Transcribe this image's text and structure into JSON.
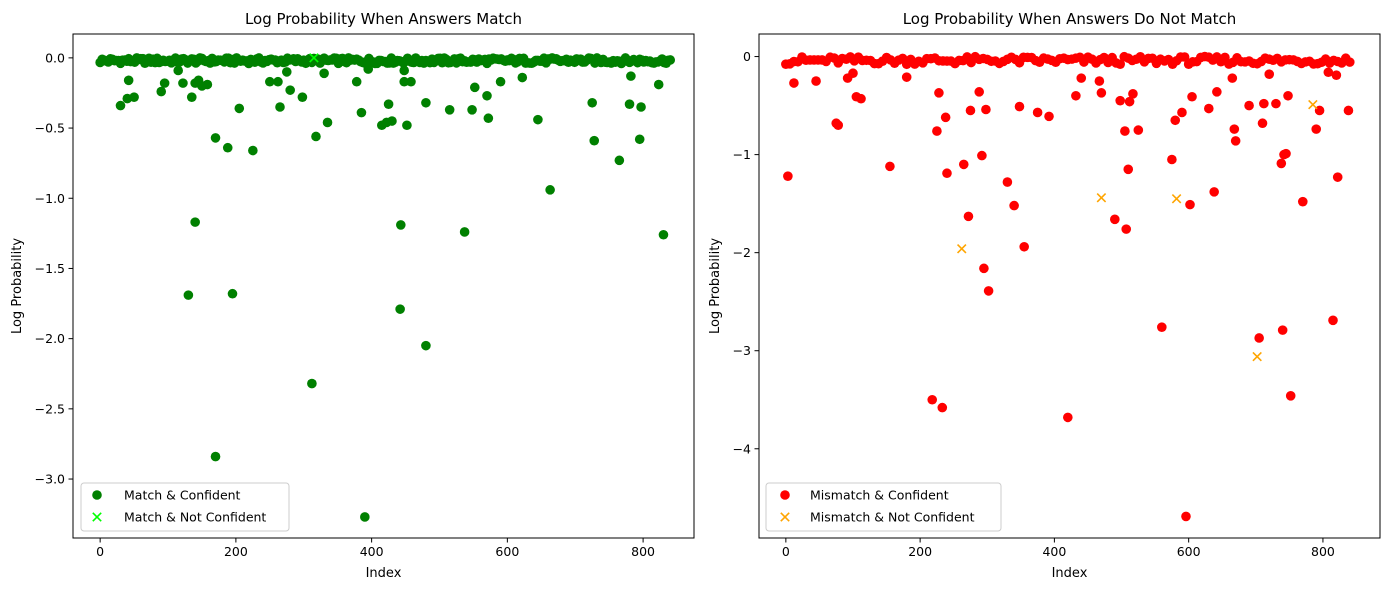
{
  "colors": {
    "match_confident": "#008000",
    "match_not_confident": "#00ff00",
    "mismatch_confident": "#ff0000",
    "mismatch_not_confident": "#ffa500"
  },
  "chart_data": [
    {
      "type": "scatter",
      "title": "Log Probability When Answers Match",
      "xlabel": "Index",
      "ylabel": "Log Probability",
      "xlim": [
        -40,
        875
      ],
      "ylim": [
        -3.42,
        0.17
      ],
      "xticks": [
        0,
        200,
        400,
        600,
        800
      ],
      "yticks": [
        0.0,
        -0.5,
        -1.0,
        -1.5,
        -2.0,
        -2.5,
        -3.0
      ],
      "xtick_labels": [
        "0",
        "200",
        "400",
        "600",
        "800"
      ],
      "ytick_labels": [
        "0.0",
        "−0.5",
        "−1.0",
        "−1.5",
        "−2.0",
        "−2.5",
        "−3.0"
      ],
      "grid": false,
      "legend_position": "lower-left",
      "baseline": {
        "x_start": 0,
        "x_end": 840,
        "step": 3,
        "value_range": [
          -0.04,
          0.0
        ]
      },
      "series": [
        {
          "name": "Match & Confident",
          "marker": "circle",
          "color": "#008000",
          "points": [
            [
              30,
              -0.34
            ],
            [
              40,
              -0.29
            ],
            [
              42,
              -0.16
            ],
            [
              50,
              -0.28
            ],
            [
              90,
              -0.24
            ],
            [
              95,
              -0.18
            ],
            [
              115,
              -0.09
            ],
            [
              122,
              -0.18
            ],
            [
              130,
              -1.69
            ],
            [
              135,
              -0.28
            ],
            [
              140,
              -1.17
            ],
            [
              140,
              -0.18
            ],
            [
              145,
              -0.16
            ],
            [
              150,
              -0.2
            ],
            [
              158,
              -0.19
            ],
            [
              170,
              -0.57
            ],
            [
              170,
              -2.84
            ],
            [
              188,
              -0.64
            ],
            [
              195,
              -1.68
            ],
            [
              205,
              -0.36
            ],
            [
              225,
              -0.66
            ],
            [
              250,
              -0.17
            ],
            [
              262,
              -0.17
            ],
            [
              265,
              -0.35
            ],
            [
              275,
              -0.1
            ],
            [
              280,
              -0.23
            ],
            [
              298,
              -0.28
            ],
            [
              312,
              -2.32
            ],
            [
              318,
              -0.56
            ],
            [
              330,
              -0.11
            ],
            [
              335,
              -0.46
            ],
            [
              378,
              -0.17
            ],
            [
              385,
              -0.39
            ],
            [
              390,
              -3.27
            ],
            [
              395,
              -0.08
            ],
            [
              415,
              -0.48
            ],
            [
              422,
              -0.46
            ],
            [
              425,
              -0.33
            ],
            [
              430,
              -0.45
            ],
            [
              442,
              -1.79
            ],
            [
              443,
              -1.19
            ],
            [
              448,
              -0.09
            ],
            [
              448,
              -0.17
            ],
            [
              452,
              -0.48
            ],
            [
              458,
              -0.17
            ],
            [
              480,
              -2.05
            ],
            [
              480,
              -0.32
            ],
            [
              515,
              -0.37
            ],
            [
              537,
              -1.24
            ],
            [
              548,
              -0.37
            ],
            [
              552,
              -0.21
            ],
            [
              570,
              -0.27
            ],
            [
              572,
              -0.43
            ],
            [
              590,
              -0.17
            ],
            [
              622,
              -0.14
            ],
            [
              645,
              -0.44
            ],
            [
              663,
              -0.94
            ],
            [
              725,
              -0.32
            ],
            [
              728,
              -0.59
            ],
            [
              765,
              -0.73
            ],
            [
              780,
              -0.33
            ],
            [
              782,
              -0.13
            ],
            [
              795,
              -0.58
            ],
            [
              797,
              -0.35
            ],
            [
              823,
              -0.19
            ],
            [
              830,
              -1.26
            ]
          ]
        },
        {
          "name": "Match & Not Confident",
          "marker": "x",
          "color": "#00ff00",
          "points": [
            [
              315,
              0.0
            ]
          ]
        }
      ]
    },
    {
      "type": "scatter",
      "title": "Log Probability When Answers Do Not Match",
      "xlabel": "Index",
      "ylabel": "Log Probability",
      "xlim": [
        -40,
        885
      ],
      "ylim": [
        -4.91,
        0.23
      ],
      "xticks": [
        0,
        200,
        400,
        600,
        800
      ],
      "yticks": [
        0,
        -1,
        -2,
        -3,
        -4
      ],
      "xtick_labels": [
        "0",
        "200",
        "400",
        "600",
        "800"
      ],
      "ytick_labels": [
        "0",
        "−1",
        "−2",
        "−3",
        "−4"
      ],
      "grid": false,
      "legend_position": "lower-left",
      "baseline": {
        "x_start": 0,
        "x_end": 840,
        "step": 6,
        "value_range": [
          -0.08,
          0.0
        ]
      },
      "series": [
        {
          "name": "Mismatch & Confident",
          "marker": "circle",
          "color": "#ff0000",
          "points": [
            [
              3,
              -1.22
            ],
            [
              12,
              -0.27
            ],
            [
              45,
              -0.25
            ],
            [
              75,
              -0.68
            ],
            [
              78,
              -0.7
            ],
            [
              92,
              -0.22
            ],
            [
              100,
              -0.17
            ],
            [
              105,
              -0.41
            ],
            [
              112,
              -0.43
            ],
            [
              155,
              -1.12
            ],
            [
              180,
              -0.21
            ],
            [
              218,
              -3.5
            ],
            [
              225,
              -0.76
            ],
            [
              228,
              -0.37
            ],
            [
              233,
              -3.58
            ],
            [
              238,
              -0.62
            ],
            [
              240,
              -1.19
            ],
            [
              265,
              -1.1
            ],
            [
              272,
              -1.63
            ],
            [
              275,
              -0.55
            ],
            [
              288,
              -0.36
            ],
            [
              292,
              -1.01
            ],
            [
              295,
              -2.16
            ],
            [
              298,
              -0.54
            ],
            [
              302,
              -2.39
            ],
            [
              330,
              -1.28
            ],
            [
              340,
              -1.52
            ],
            [
              348,
              -0.51
            ],
            [
              355,
              -1.94
            ],
            [
              375,
              -0.57
            ],
            [
              392,
              -0.61
            ],
            [
              420,
              -3.68
            ],
            [
              432,
              -0.4
            ],
            [
              440,
              -0.22
            ],
            [
              467,
              -0.25
            ],
            [
              470,
              -0.37
            ],
            [
              490,
              -1.66
            ],
            [
              498,
              -0.45
            ],
            [
              505,
              -0.76
            ],
            [
              507,
              -1.76
            ],
            [
              510,
              -1.15
            ],
            [
              512,
              -0.46
            ],
            [
              517,
              -0.38
            ],
            [
              525,
              -0.75
            ],
            [
              560,
              -2.76
            ],
            [
              575,
              -1.05
            ],
            [
              580,
              -0.65
            ],
            [
              590,
              -0.57
            ],
            [
              596,
              -4.69
            ],
            [
              602,
              -1.51
            ],
            [
              605,
              -0.41
            ],
            [
              630,
              -0.53
            ],
            [
              638,
              -1.38
            ],
            [
              642,
              -0.36
            ],
            [
              665,
              -0.22
            ],
            [
              668,
              -0.74
            ],
            [
              670,
              -0.86
            ],
            [
              690,
              -0.5
            ],
            [
              705,
              -2.87
            ],
            [
              710,
              -0.68
            ],
            [
              712,
              -0.48
            ],
            [
              720,
              -0.18
            ],
            [
              730,
              -0.48
            ],
            [
              738,
              -1.09
            ],
            [
              740,
              -2.79
            ],
            [
              742,
              -1.0
            ],
            [
              745,
              -0.99
            ],
            [
              748,
              -0.4
            ],
            [
              752,
              -3.46
            ],
            [
              770,
              -1.48
            ],
            [
              790,
              -0.74
            ],
            [
              795,
              -0.55
            ],
            [
              815,
              -2.69
            ],
            [
              822,
              -1.23
            ],
            [
              838,
              -0.55
            ],
            [
              808,
              -0.16
            ],
            [
              820,
              -0.19
            ]
          ]
        },
        {
          "name": "Mismatch & Not Confident",
          "marker": "x",
          "color": "#ffa500",
          "points": [
            [
              262,
              -1.96
            ],
            [
              470,
              -1.44
            ],
            [
              582,
              -1.45
            ],
            [
              702,
              -3.06
            ],
            [
              785,
              -0.49
            ]
          ]
        }
      ]
    }
  ]
}
